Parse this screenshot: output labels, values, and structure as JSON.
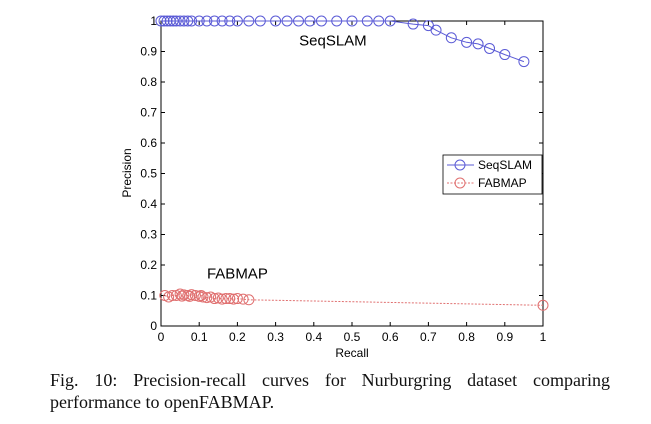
{
  "chart_data": {
    "type": "line",
    "title": "",
    "xlabel": "Recall",
    "ylabel": "Precision",
    "xlim": [
      0,
      1
    ],
    "ylim": [
      0,
      1
    ],
    "xticks": [
      "0",
      "0.1",
      "0.2",
      "0.3",
      "0.4",
      "0.5",
      "0.6",
      "0.7",
      "0.8",
      "0.9",
      "1"
    ],
    "yticks": [
      "0",
      "0.1",
      "0.2",
      "0.3",
      "0.4",
      "0.5",
      "0.6",
      "0.7",
      "0.8",
      "0.9",
      "1"
    ],
    "legend_position": "center-right",
    "annotations": [
      {
        "text": "SeqSLAM",
        "x": 0.45,
        "y": 0.92
      },
      {
        "text": "FABMAP",
        "x": 0.2,
        "y": 0.155
      }
    ],
    "series": [
      {
        "name": "SeqSLAM",
        "color": "#5b5bd6",
        "x": [
          0.0,
          0.008,
          0.016,
          0.024,
          0.032,
          0.04,
          0.05,
          0.06,
          0.07,
          0.08,
          0.1,
          0.12,
          0.14,
          0.16,
          0.18,
          0.2,
          0.23,
          0.26,
          0.3,
          0.33,
          0.36,
          0.39,
          0.42,
          0.46,
          0.5,
          0.54,
          0.57,
          0.6,
          0.66,
          0.7,
          0.72,
          0.76,
          0.8,
          0.83,
          0.86,
          0.9,
          0.95
        ],
        "y": [
          1.0,
          1.0,
          1.0,
          1.0,
          1.0,
          1.0,
          1.0,
          1.0,
          1.0,
          1.0,
          1.0,
          1.0,
          1.0,
          1.0,
          1.0,
          1.0,
          1.0,
          1.0,
          1.0,
          1.0,
          1.0,
          1.0,
          1.0,
          1.0,
          1.0,
          1.0,
          1.0,
          1.0,
          0.99,
          0.985,
          0.97,
          0.945,
          0.93,
          0.925,
          0.91,
          0.89,
          0.867
        ]
      },
      {
        "name": "FABMAP",
        "color": "#e07070",
        "x": [
          0.01,
          0.02,
          0.03,
          0.04,
          0.05,
          0.055,
          0.06,
          0.07,
          0.075,
          0.08,
          0.09,
          0.1,
          0.105,
          0.11,
          0.12,
          0.13,
          0.14,
          0.15,
          0.16,
          0.17,
          0.18,
          0.19,
          0.2,
          0.215,
          0.23,
          1.0
        ],
        "y": [
          0.1,
          0.095,
          0.1,
          0.1,
          0.105,
          0.098,
          0.102,
          0.1,
          0.097,
          0.103,
          0.1,
          0.097,
          0.1,
          0.095,
          0.093,
          0.095,
          0.09,
          0.092,
          0.088,
          0.09,
          0.09,
          0.088,
          0.09,
          0.088,
          0.086,
          0.068
        ]
      }
    ]
  },
  "caption": "Fig. 10: Precision-recall curves for Nurburgring dataset comparing performance to openFABMAP."
}
